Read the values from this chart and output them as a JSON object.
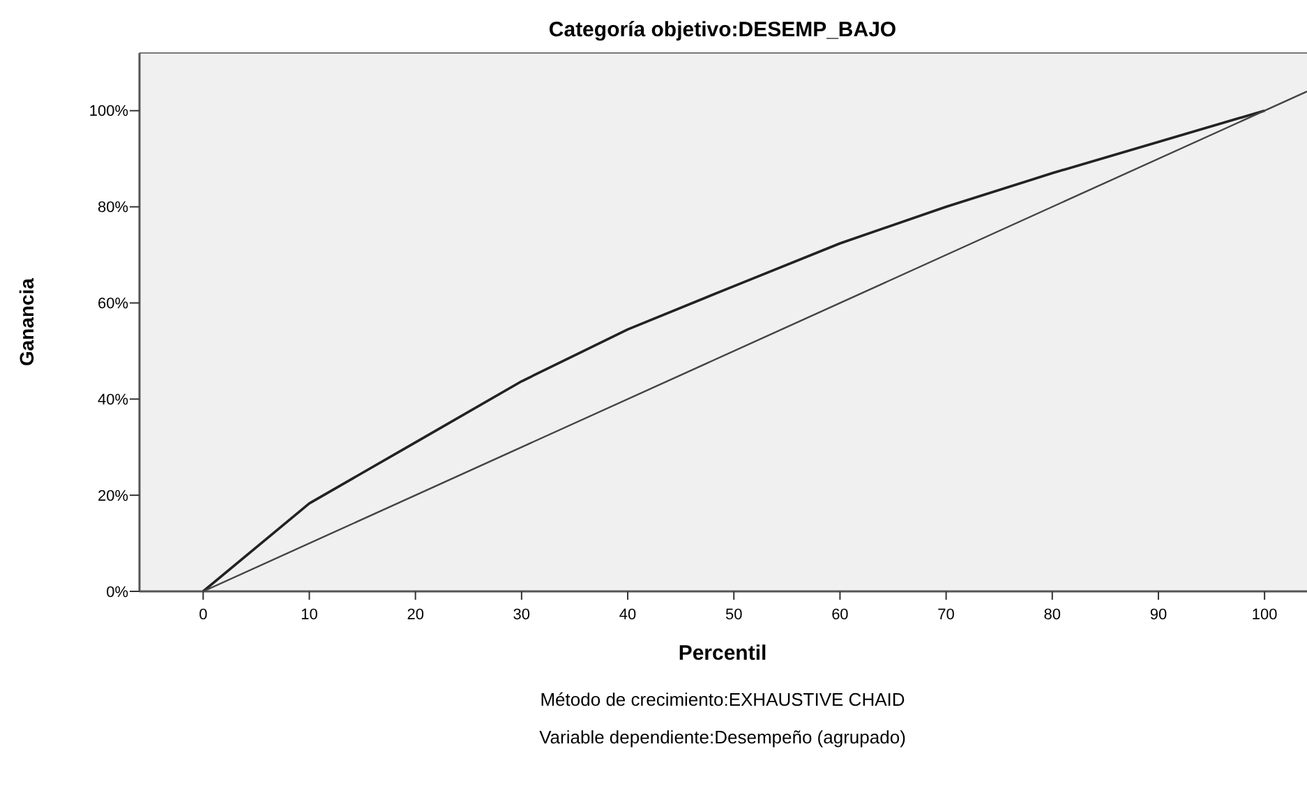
{
  "chart_data": {
    "type": "line",
    "title": "Categoría objetivo:DESEMP_BAJO",
    "xlabel": "Percentil",
    "ylabel": "Ganancia",
    "annotations": [
      "Método de crecimiento:EXHAUSTIVE CHAID",
      "Variable dependiente:Desempeño (agrupado)"
    ],
    "series": [
      {
        "color": "#222222",
        "x": [
          0,
          10,
          20,
          30,
          40,
          50,
          60,
          70,
          80,
          90,
          100
        ],
        "values": [
          0,
          18.3,
          31,
          43.7,
          54.5,
          63.5,
          72.4,
          80,
          87,
          93.5,
          100
        ]
      },
      {
        "color": "#444444",
        "x": [
          0,
          104
        ],
        "values": [
          0,
          104
        ]
      }
    ],
    "xlim": [
      -6,
      104
    ],
    "xticks": [
      0,
      10,
      20,
      30,
      40,
      50,
      60,
      70,
      80,
      90,
      100
    ],
    "ylim": [
      0,
      112
    ],
    "yticks": [
      {
        "value": 0,
        "label": "0%"
      },
      {
        "value": 20,
        "label": "20%"
      },
      {
        "value": 40,
        "label": "40%"
      },
      {
        "value": 60,
        "label": "60%"
      },
      {
        "value": 80,
        "label": "80%"
      },
      {
        "value": 100,
        "label": "100%"
      }
    ],
    "grid": false,
    "marker": "none",
    "line_style": "solid"
  }
}
